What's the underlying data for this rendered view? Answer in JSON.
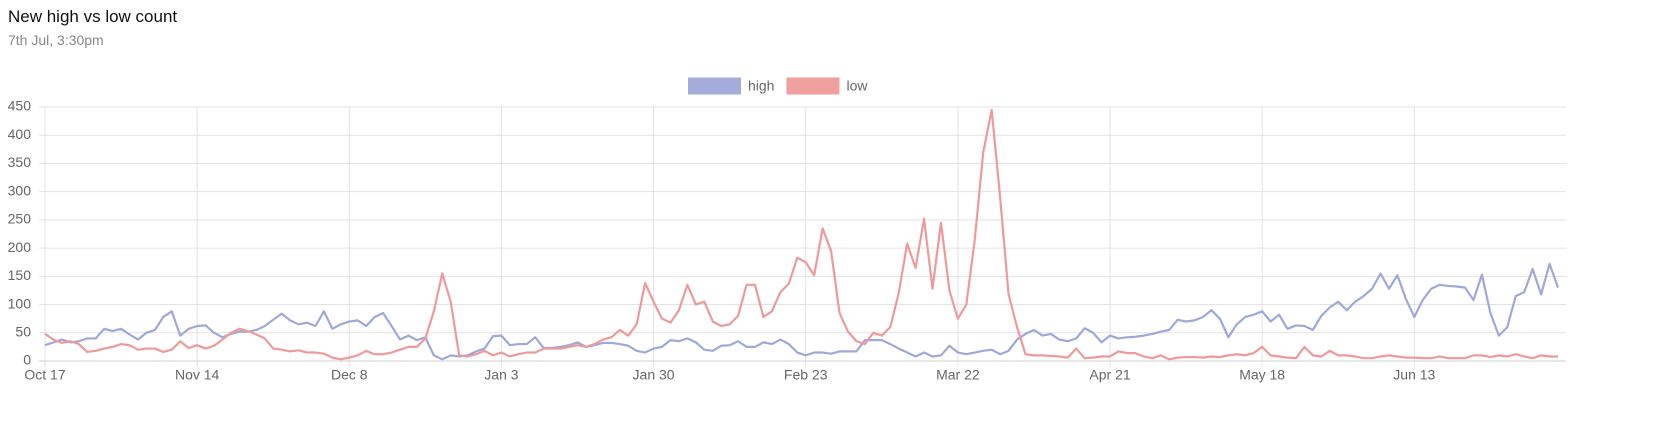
{
  "chart_data": {
    "type": "line",
    "title": "New high vs low count",
    "subtitle": "7th Jul, 3:30pm",
    "categories": [
      "Oct 17",
      null,
      null,
      null,
      null,
      null,
      null,
      null,
      null,
      null,
      null,
      null,
      null,
      null,
      null,
      null,
      null,
      null,
      "Nov 14",
      null,
      null,
      null,
      null,
      null,
      null,
      null,
      null,
      null,
      null,
      null,
      null,
      null,
      null,
      null,
      null,
      null,
      "Dec 8",
      null,
      null,
      null,
      null,
      null,
      null,
      null,
      null,
      null,
      null,
      null,
      null,
      null,
      null,
      null,
      null,
      null,
      "Jan 3",
      null,
      null,
      null,
      null,
      null,
      null,
      null,
      null,
      null,
      null,
      null,
      null,
      null,
      null,
      null,
      null,
      null,
      "Jan 30",
      null,
      null,
      null,
      null,
      null,
      null,
      null,
      null,
      null,
      null,
      null,
      null,
      null,
      null,
      null,
      null,
      null,
      "Feb 23",
      null,
      null,
      null,
      null,
      null,
      null,
      null,
      null,
      null,
      null,
      null,
      null,
      null,
      null,
      null,
      null,
      null,
      "Mar 22",
      null,
      null,
      null,
      null,
      null,
      null,
      null,
      null,
      null,
      null,
      null,
      null,
      null,
      null,
      null,
      null,
      null,
      "Apr 21",
      null,
      null,
      null,
      null,
      null,
      null,
      null,
      null,
      null,
      null,
      null,
      null,
      null,
      null,
      null,
      null,
      null,
      "May 18",
      null,
      null,
      null,
      null,
      null,
      null,
      null,
      null,
      null,
      null,
      null,
      null,
      null,
      null,
      null,
      null,
      null,
      "Jun 13",
      null,
      null,
      null,
      null,
      null,
      null,
      null,
      null,
      null,
      null,
      null,
      null,
      null,
      null,
      null,
      null,
      null
    ],
    "series": [
      {
        "name": "high",
        "color": "#9fa8da",
        "values": [
          28,
          33,
          38,
          33,
          35,
          40,
          40,
          57,
          53,
          57,
          47,
          38,
          50,
          55,
          78,
          88,
          45,
          57,
          62,
          63,
          50,
          42,
          48,
          52,
          52,
          55,
          62,
          73,
          84,
          72,
          65,
          68,
          62,
          88,
          57,
          65,
          70,
          72,
          62,
          78,
          85,
          62,
          38,
          45,
          37,
          42,
          10,
          3,
          10,
          8,
          10,
          17,
          22,
          44,
          45,
          28,
          30,
          30,
          42,
          23,
          23,
          25,
          28,
          33,
          25,
          28,
          32,
          32,
          30,
          27,
          18,
          15,
          22,
          25,
          37,
          35,
          40,
          33,
          20,
          18,
          27,
          28,
          35,
          25,
          25,
          33,
          30,
          38,
          30,
          15,
          10,
          15,
          15,
          13,
          17,
          17,
          17,
          37,
          37,
          37,
          30,
          22,
          15,
          8,
          15,
          8,
          10,
          27,
          15,
          12,
          15,
          18,
          20,
          12,
          18,
          38,
          48,
          55,
          45,
          48,
          38,
          35,
          40,
          58,
          50,
          33,
          45,
          40,
          42,
          43,
          45,
          48,
          52,
          55,
          73,
          70,
          72,
          78,
          90,
          75,
          42,
          65,
          78,
          82,
          88,
          70,
          82,
          57,
          63,
          62,
          55,
          80,
          95,
          105,
          90,
          105,
          115,
          128,
          155,
          128,
          152,
          110,
          78,
          108,
          128,
          135,
          133,
          132,
          130,
          108,
          153,
          85,
          45,
          60,
          115,
          122,
          163,
          118,
          172,
          130
        ]
      },
      {
        "name": "low",
        "color": "#ef9a9a",
        "values": [
          48,
          38,
          32,
          35,
          30,
          16,
          18,
          22,
          25,
          30,
          28,
          20,
          22,
          22,
          16,
          20,
          35,
          23,
          28,
          22,
          27,
          38,
          50,
          57,
          53,
          47,
          40,
          22,
          20,
          17,
          19,
          15,
          15,
          13,
          6,
          3,
          6,
          10,
          18,
          12,
          12,
          15,
          20,
          25,
          25,
          40,
          88,
          155,
          105,
          10,
          8,
          12,
          18,
          10,
          15,
          8,
          12,
          15,
          15,
          22,
          22,
          22,
          25,
          28,
          25,
          30,
          38,
          42,
          55,
          45,
          65,
          138,
          105,
          75,
          68,
          90,
          135,
          100,
          105,
          70,
          62,
          65,
          80,
          135,
          135,
          78,
          88,
          122,
          137,
          183,
          175,
          152,
          235,
          195,
          85,
          52,
          35,
          30,
          50,
          45,
          60,
          120,
          208,
          165,
          252,
          128,
          245,
          125,
          75,
          100,
          215,
          370,
          445,
          290,
          118,
          60,
          12,
          10,
          10,
          9,
          8,
          6,
          22,
          5,
          6,
          8,
          8,
          17,
          14,
          14,
          8,
          5,
          10,
          3,
          6,
          7,
          7,
          6,
          8,
          7,
          10,
          12,
          10,
          14,
          25,
          10,
          8,
          6,
          5,
          25,
          10,
          8,
          18,
          10,
          10,
          8,
          5,
          5,
          8,
          10,
          8,
          6,
          6,
          5,
          5,
          8,
          5,
          5,
          5,
          10,
          10,
          7,
          10,
          8,
          12,
          8,
          5,
          10,
          8,
          8
        ]
      }
    ],
    "ylim": [
      0,
      450
    ],
    "yticks": [
      0,
      50,
      100,
      150,
      200,
      250,
      300,
      350,
      400,
      450
    ],
    "grid": true
  }
}
